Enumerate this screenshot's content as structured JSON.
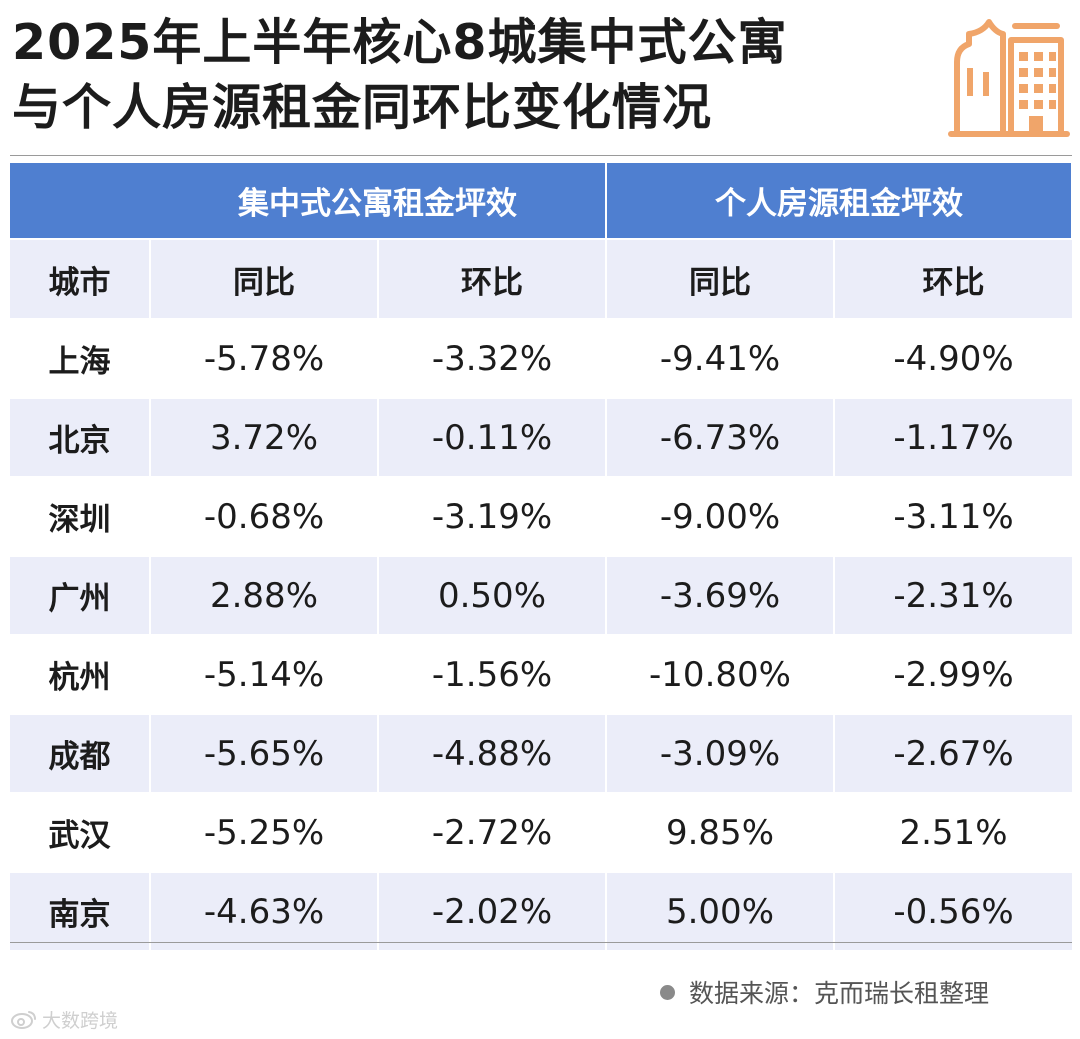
{
  "title": {
    "line1": "2025年上半年核心8城集中式公寓",
    "line2": "与个人房源租金同环比变化情况"
  },
  "icon": "building-icon",
  "colors": {
    "header_blue": "#4f7fd0",
    "stripe": "#ebedf9",
    "accent_orange": "#f0a56a",
    "text": "#1c1c1c"
  },
  "chart_data": {
    "type": "table",
    "column_groups": [
      {
        "name": "集中式公寓租金坪效",
        "columns": [
          "同比",
          "环比"
        ]
      },
      {
        "name": "个人房源租金坪效",
        "columns": [
          "同比",
          "环比"
        ]
      }
    ],
    "row_header": "城市",
    "rows": [
      {
        "city": "上海",
        "values": [
          "-5.78%",
          "-3.32%",
          "-9.41%",
          "-4.90%"
        ]
      },
      {
        "city": "北京",
        "values": [
          "3.72%",
          "-0.11%",
          "-6.73%",
          "-1.17%"
        ]
      },
      {
        "city": "深圳",
        "values": [
          "-0.68%",
          "-3.19%",
          "-9.00%",
          "-3.11%"
        ]
      },
      {
        "city": "广州",
        "values": [
          "2.88%",
          "0.50%",
          "-3.69%",
          "-2.31%"
        ]
      },
      {
        "city": "杭州",
        "values": [
          "-5.14%",
          "-1.56%",
          "-10.80%",
          "-2.99%"
        ]
      },
      {
        "city": "成都",
        "values": [
          "-5.65%",
          "-4.88%",
          "-3.09%",
          "-2.67%"
        ]
      },
      {
        "city": "武汉",
        "values": [
          "-5.25%",
          "-2.72%",
          "9.85%",
          "2.51%"
        ]
      },
      {
        "city": "南京",
        "values": [
          "-4.63%",
          "-2.02%",
          "5.00%",
          "-0.56%"
        ]
      }
    ]
  },
  "source": "数据来源：克而瑞长租整理",
  "credit": "大数跨境"
}
